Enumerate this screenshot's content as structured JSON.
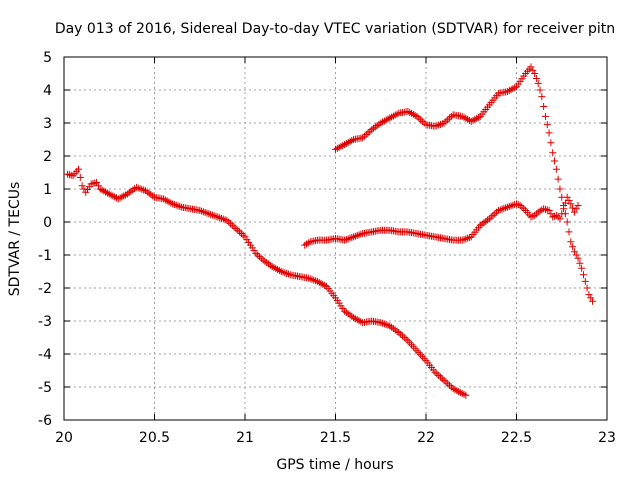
{
  "chart_data": {
    "type": "scatter",
    "title": "Day 013 of 2016, Sidereal Day-to-day VTEC variation (SDTVAR) for receiver pitn",
    "xlabel": "GPS time / hours",
    "ylabel": "SDTVAR / TECUs",
    "xlim": [
      20,
      23
    ],
    "ylim": [
      -6,
      5
    ],
    "xticks": [
      20,
      20.5,
      21,
      21.5,
      22,
      22.5,
      23
    ],
    "xtick_labels": [
      "20",
      "20.5",
      "21",
      "21.5",
      "22",
      "22.5",
      "23"
    ],
    "yticks": [
      -6,
      -5,
      -4,
      -3,
      -2,
      -1,
      0,
      1,
      2,
      3,
      4,
      5
    ],
    "ytick_labels": [
      "-6",
      "-5",
      "-4",
      "-3",
      "-2",
      "-1",
      "0",
      "1",
      "2",
      "3",
      "4",
      "5"
    ],
    "grid": true,
    "marker": "plus",
    "color": "#e00000",
    "series": [
      {
        "x": [
          20.02,
          20.05,
          20.08,
          20.1,
          20.12,
          20.15,
          20.18,
          20.2,
          20.25,
          20.3,
          20.35,
          20.4,
          20.45,
          20.5,
          20.55,
          20.6,
          20.65,
          20.7,
          20.75,
          20.8,
          20.85,
          20.9,
          20.95,
          21.0,
          21.03,
          21.06,
          21.1,
          21.15,
          21.2,
          21.25,
          21.3,
          21.35,
          21.4,
          21.45,
          21.5,
          21.55,
          21.6,
          21.65,
          21.7,
          21.75,
          21.8,
          21.85,
          21.9,
          21.95,
          22.0,
          22.05,
          22.1,
          22.15,
          22.2,
          22.22
        ],
        "y": [
          1.45,
          1.4,
          1.6,
          1.1,
          0.9,
          1.15,
          1.2,
          1.0,
          0.85,
          0.7,
          0.85,
          1.05,
          0.95,
          0.75,
          0.7,
          0.55,
          0.45,
          0.4,
          0.35,
          0.25,
          0.15,
          0.05,
          -0.2,
          -0.45,
          -0.7,
          -0.95,
          -1.15,
          -1.35,
          -1.5,
          -1.6,
          -1.65,
          -1.7,
          -1.8,
          -1.95,
          -2.3,
          -2.7,
          -2.9,
          -3.05,
          -3.0,
          -3.05,
          -3.15,
          -3.35,
          -3.6,
          -3.9,
          -4.2,
          -4.55,
          -4.8,
          -5.05,
          -5.2,
          -5.25
        ]
      },
      {
        "x": [
          21.33,
          21.36,
          21.4,
          21.45,
          21.5,
          21.55,
          21.6,
          21.65,
          21.7,
          21.75,
          21.8,
          21.85,
          21.9,
          21.95,
          22.0,
          22.05,
          22.1,
          22.15,
          22.2,
          22.25,
          22.3,
          22.35,
          22.4,
          22.45,
          22.5,
          22.52,
          22.55,
          22.58,
          22.6,
          22.62,
          22.65,
          22.68,
          22.7,
          22.72,
          22.74,
          22.76,
          22.78,
          22.8,
          22.82,
          22.84
        ],
        "y": [
          -0.7,
          -0.6,
          -0.55,
          -0.55,
          -0.5,
          -0.55,
          -0.45,
          -0.35,
          -0.3,
          -0.25,
          -0.25,
          -0.3,
          -0.3,
          -0.35,
          -0.4,
          -0.45,
          -0.5,
          -0.55,
          -0.55,
          -0.45,
          -0.1,
          0.1,
          0.35,
          0.45,
          0.55,
          0.5,
          0.35,
          0.15,
          0.2,
          0.3,
          0.4,
          0.35,
          0.15,
          0.2,
          0.1,
          0.4,
          0.75,
          0.55,
          0.3,
          0.5
        ]
      },
      {
        "x": [
          21.5,
          21.55,
          21.6,
          21.65,
          21.7,
          21.75,
          21.8,
          21.85,
          21.9,
          21.95,
          22.0,
          22.05,
          22.1,
          22.15,
          22.2,
          22.25,
          22.3,
          22.35,
          22.4,
          22.45,
          22.5,
          22.55,
          22.58,
          22.6,
          22.62,
          22.64,
          22.66,
          22.68,
          22.7,
          22.72,
          22.74,
          22.76,
          22.78,
          22.8,
          22.82,
          22.84,
          22.86,
          22.88,
          22.9,
          22.92
        ],
        "y": [
          2.2,
          2.35,
          2.5,
          2.55,
          2.8,
          3.0,
          3.15,
          3.3,
          3.35,
          3.2,
          2.95,
          2.9,
          3.0,
          3.25,
          3.2,
          3.05,
          3.2,
          3.55,
          3.9,
          3.95,
          4.1,
          4.5,
          4.7,
          4.5,
          4.2,
          3.8,
          3.2,
          2.7,
          2.1,
          1.6,
          1.0,
          0.5,
          0.0,
          -0.6,
          -0.9,
          -1.1,
          -1.4,
          -1.8,
          -2.2,
          -2.4
        ]
      }
    ]
  }
}
